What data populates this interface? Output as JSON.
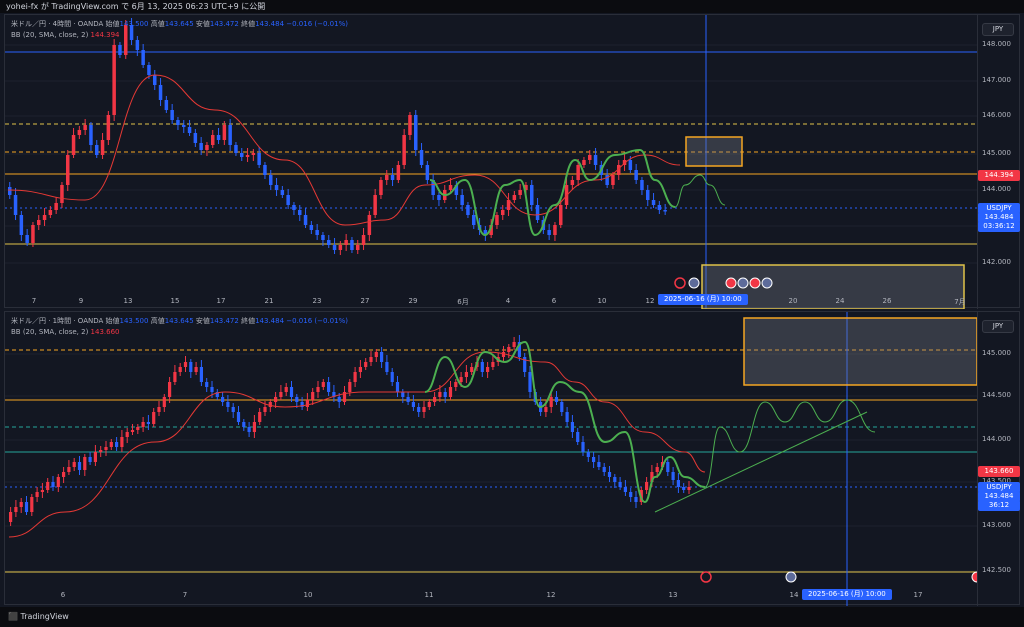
{
  "header": {
    "text": "yohei-fx が TradingView.com で 6月 13, 2025 06:23 UTC+9 に公開"
  },
  "footer": {
    "brand": "TradingView"
  },
  "colors": {
    "up": "#f23645",
    "down": "#2962ff",
    "accent": "#2962ff",
    "sma": "#e53935",
    "pattern": "#4caf50",
    "level_orange": "#f5a623",
    "level_yellow": "#e0c34a"
  },
  "pane1": {
    "legend_line1_prefix": "米ドル／円 · 4時間 · OANDA",
    "o_label": "始値",
    "o": "143.500",
    "h_label": "高値",
    "h": "143.645",
    "l_label": "安値",
    "l": "143.472",
    "c_label": "終値",
    "c": "143.484",
    "change": "−0.016 (−0.01%)",
    "legend_line2": "BB (20, SMA, close, 2)",
    "bb_value": "144.394",
    "currency_button": "JPY",
    "y_ticks": [
      "148.000",
      "147.000",
      "146.000",
      "145.000",
      "144.000",
      "143.000",
      "142.000"
    ],
    "price_tag_red": "144.394",
    "price_tag_symbol": "USDJPY",
    "price_tag_last": "143.484",
    "price_tag_timer": "03:36:12",
    "x_ticks": [
      "7",
      "9",
      "13",
      "15",
      "17",
      "21",
      "23",
      "27",
      "29",
      "6月",
      "4",
      "6",
      "10",
      "12",
      "20",
      "24",
      "26",
      "7月"
    ],
    "x_cursor": "2025-06-16 (月)",
    "x_cursor_time": "10:00"
  },
  "pane2": {
    "legend_line1_prefix": "米ドル／円 · 1時間 · OANDA",
    "o_label": "始値",
    "o": "143.500",
    "h_label": "高値",
    "h": "143.645",
    "l_label": "安値",
    "l": "143.472",
    "c_label": "終値",
    "c": "143.484",
    "change": "−0.016 (−0.01%)",
    "legend_line2": "BB (20, SMA, close, 2)",
    "bb_value": "143.660",
    "currency_button": "JPY",
    "y_ticks": [
      "145.000",
      "144.500",
      "144.000",
      "143.500",
      "143.000",
      "142.500"
    ],
    "price_tag_red": "143.660",
    "price_tag_symbol": "USDJPY",
    "price_tag_last": "143.484",
    "price_tag_timer": "36:12",
    "x_ticks": [
      "6",
      "7",
      "10",
      "11",
      "12",
      "13",
      "14",
      "17"
    ],
    "x_cursor": "2025-06-16 (月)",
    "x_cursor_time": "10:00"
  }
}
